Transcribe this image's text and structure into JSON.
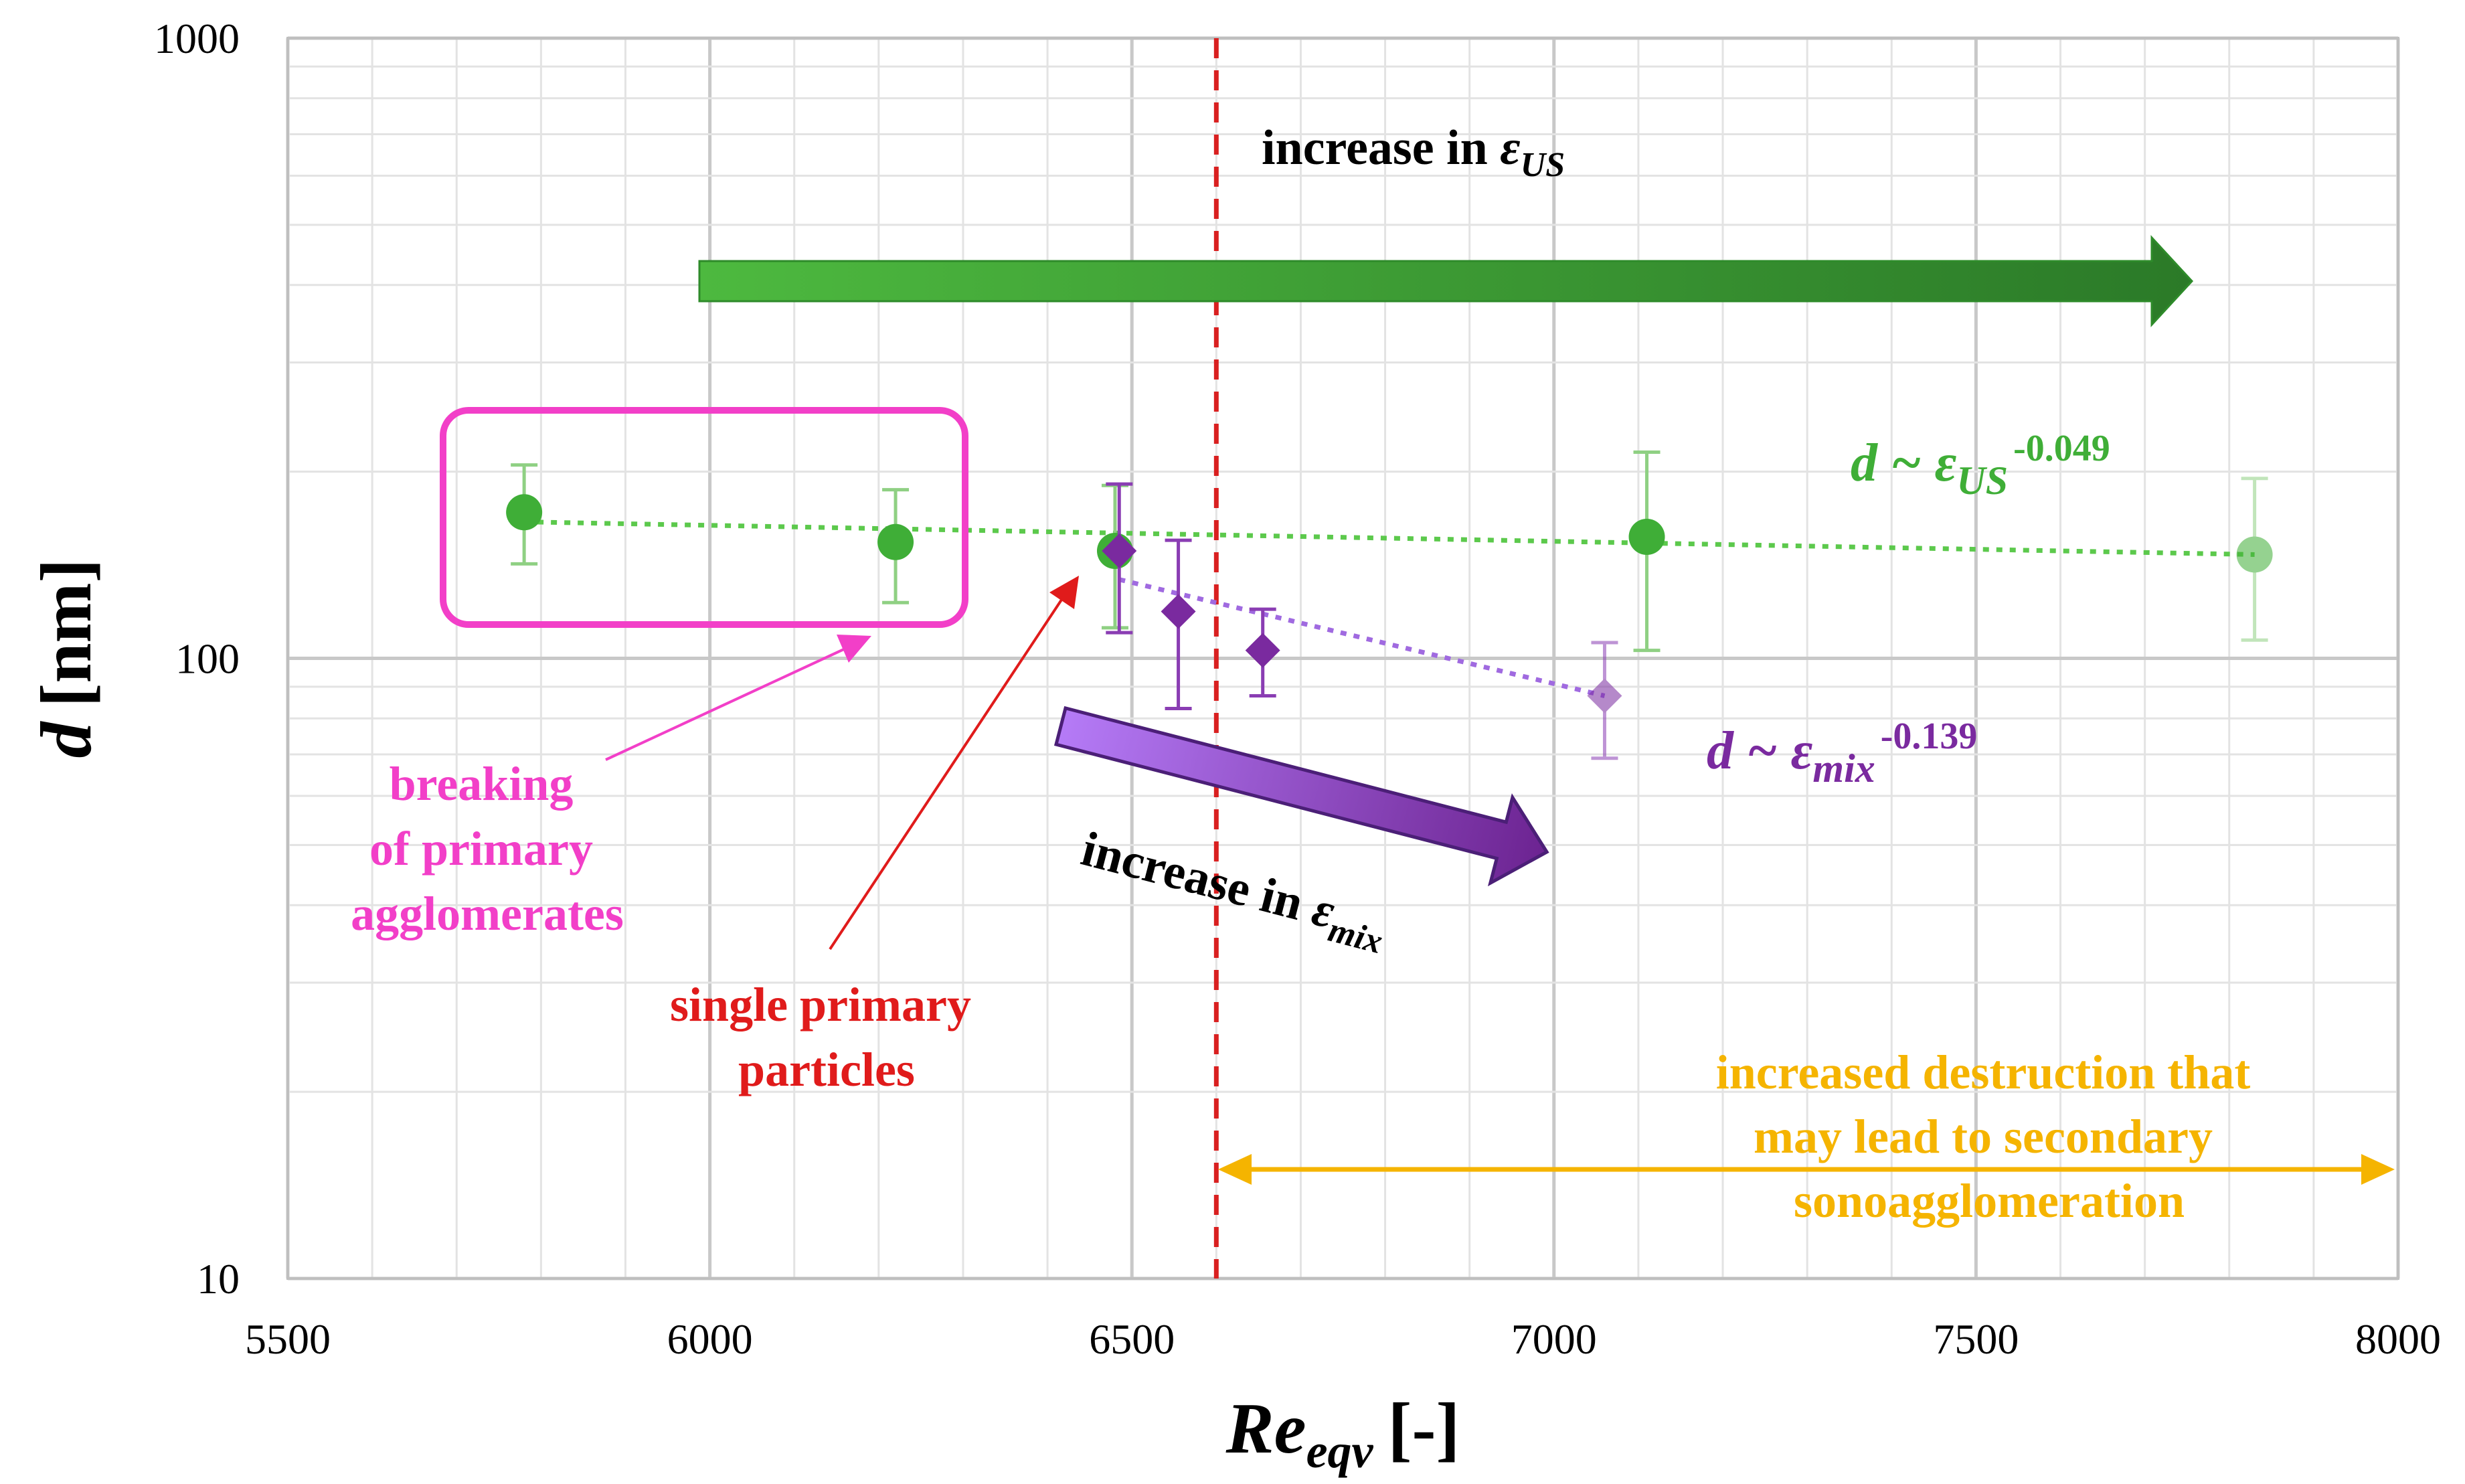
{
  "chart_data": {
    "type": "scatter",
    "x_axis": {
      "label_main": "Re",
      "label_sub": "eqv",
      "label_unit": "[-]",
      "range": [
        5500,
        8000
      ],
      "ticks": [
        5500,
        6000,
        6500,
        7000,
        7500,
        8000
      ],
      "tick_labels": [
        "5500",
        "6000",
        "6500",
        "7000",
        "7500",
        "8000"
      ]
    },
    "y_axis": {
      "label_main": "d",
      "label_unit": "[nm]",
      "scale": "log",
      "range": [
        10,
        1000
      ],
      "ticks": [
        10,
        100,
        1000
      ],
      "tick_labels": [
        "10",
        "100",
        "1000"
      ]
    },
    "grid": true,
    "series": [
      {
        "name": "US",
        "color": "#3fae37",
        "marker": "circle",
        "points": [
          {
            "x": 5780,
            "y": 172,
            "err_low": 142,
            "err_high": 205,
            "faded": false
          },
          {
            "x": 6220,
            "y": 154,
            "err_low": 123,
            "err_high": 187,
            "faded": false
          },
          {
            "x": 6480,
            "y": 149,
            "err_low": 112,
            "err_high": 190,
            "faded": false
          },
          {
            "x": 7110,
            "y": 157,
            "err_low": 103,
            "err_high": 215,
            "faded": false
          },
          {
            "x": 7830,
            "y": 147,
            "err_low": 107,
            "err_high": 195,
            "faded": true
          }
        ],
        "trendline": {
          "x": [
            5780,
            7830
          ],
          "y": [
            166,
            147
          ],
          "color": "#5cc94c"
        },
        "fit_label": {
          "prefix": "d ~ ",
          "symbol": "ε",
          "sub": "US",
          "sup": "-0.049"
        }
      },
      {
        "name": "mix",
        "color": "#7a2a9f",
        "marker": "diamond",
        "points": [
          {
            "x": 6485,
            "y": 149,
            "err_low": 110,
            "err_high": 191,
            "faded": false
          },
          {
            "x": 6555,
            "y": 119,
            "err_low": 83,
            "err_high": 155,
            "faded": false
          },
          {
            "x": 6655,
            "y": 103,
            "err_low": 87,
            "err_high": 120,
            "faded": false
          },
          {
            "x": 7060,
            "y": 87,
            "err_low": 69,
            "err_high": 106,
            "faded": true
          }
        ],
        "trendline": {
          "x": [
            6485,
            7060
          ],
          "y": [
            134,
            87
          ],
          "color": "#a06ae0"
        },
        "fit_label": {
          "prefix": "d ~ ",
          "symbol": "ε",
          "sub": "mix",
          "sup": "-0.139"
        }
      }
    ],
    "reference_line": {
      "x": 6600,
      "color": "#d92020",
      "style": "dashed"
    },
    "annotations": {
      "us_arrow": {
        "text": "increase in ",
        "symbol": "ε",
        "sub": "US",
        "color_start": "#4db93f",
        "color_end": "#2b7a28"
      },
      "mix_arrow": {
        "text": "increase in ",
        "symbol": "ε",
        "sub": "mix",
        "color_start": "#b57bf7",
        "color_end": "#6c2391"
      },
      "breaking": {
        "lines": [
          "breaking",
          "of primary",
          "agglomerates"
        ],
        "color": "#f23fc8"
      },
      "single": {
        "lines": [
          "single primary",
          "particles"
        ],
        "color": "#e01b1b"
      },
      "destruction": {
        "lines": [
          "increased destruction that",
          "may lead to secondary",
          "sonoagglomeration"
        ],
        "color": "#f5b400"
      }
    }
  }
}
